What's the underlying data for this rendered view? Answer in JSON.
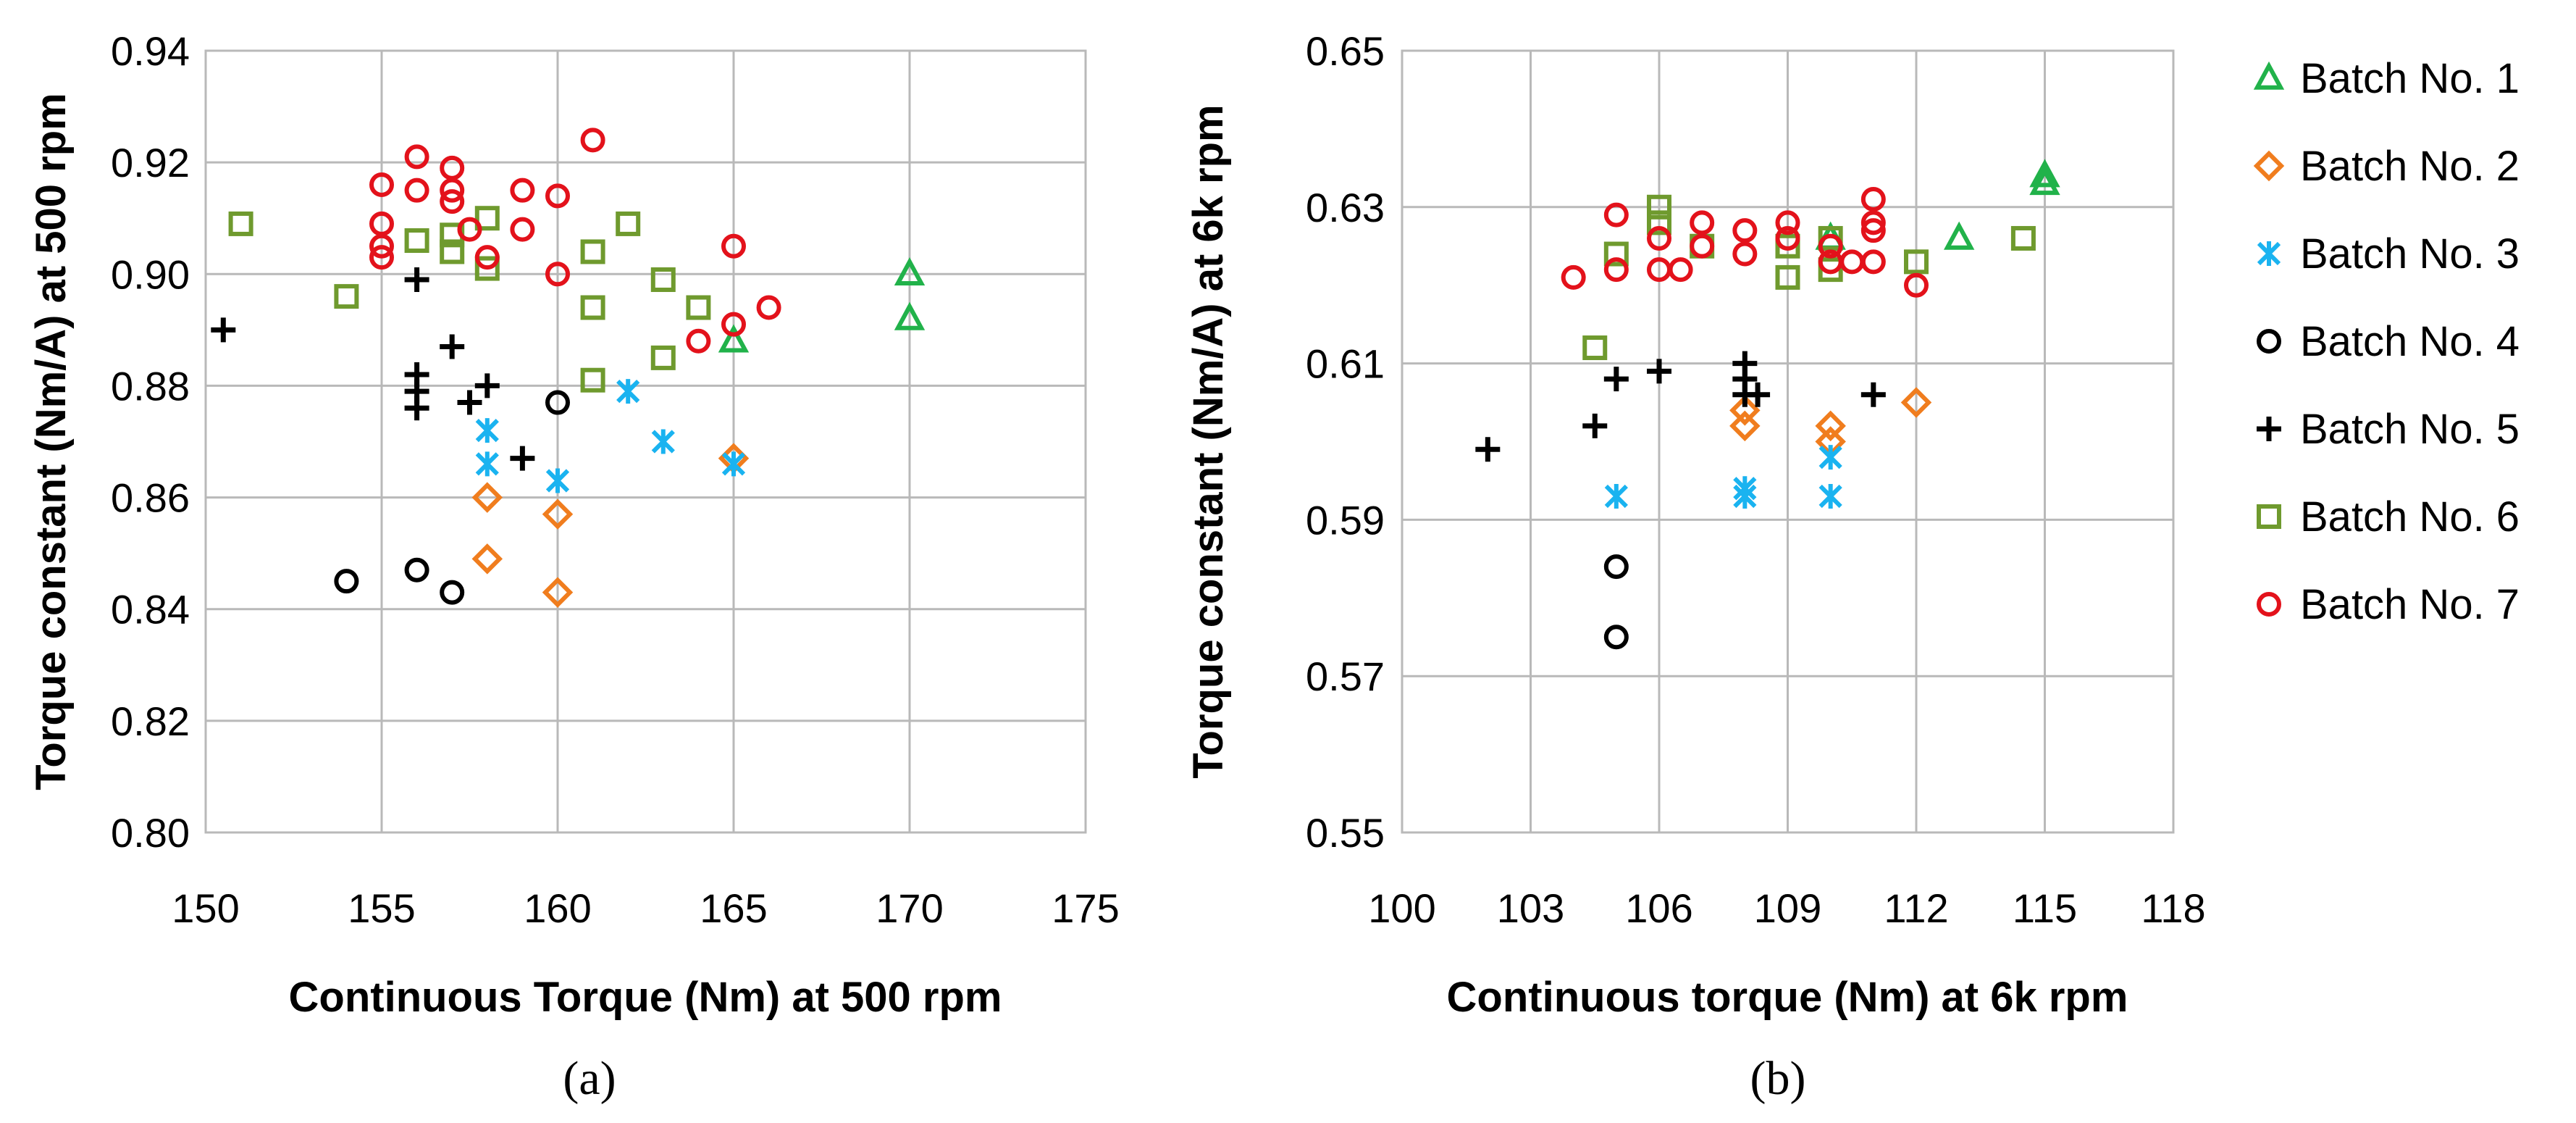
{
  "figure": {
    "label_a": "(a)",
    "label_b": "(b)"
  },
  "legend": [
    {
      "name": "Batch No. 1",
      "marker": "triangle",
      "color": "#21b24a"
    },
    {
      "name": "Batch No. 2",
      "marker": "diamond",
      "color": "#f07d1e"
    },
    {
      "name": "Batch No. 3",
      "marker": "star",
      "color": "#1ab3f0"
    },
    {
      "name": "Batch No. 4",
      "marker": "circle",
      "color": "#000000"
    },
    {
      "name": "Batch No. 5",
      "marker": "plus",
      "color": "#000000"
    },
    {
      "name": "Batch No. 6",
      "marker": "square",
      "color": "#6f9a2e"
    },
    {
      "name": "Batch No. 7",
      "marker": "circle",
      "color": "#e3121b"
    }
  ],
  "chart_data": [
    {
      "type": "scatter",
      "panel": "(a)",
      "title": "",
      "xlabel": "Continuous Torque (Nm) at 500 rpm",
      "ylabel": "Torque constant (Nm/A) at 500 rpm",
      "xlim": [
        150,
        175
      ],
      "ylim": [
        0.8,
        0.94
      ],
      "xticks": [
        "150",
        "155",
        "160",
        "165",
        "170",
        "175"
      ],
      "yticks": [
        "0.80",
        "0.82",
        "0.84",
        "0.86",
        "0.88",
        "0.90",
        "0.92",
        "0.94"
      ],
      "xstep": 5,
      "ystep": 0.02,
      "grid": true,
      "series": [
        {
          "name": "Batch No. 1",
          "points": [
            [
              170,
              0.9
            ],
            [
              170,
              0.892
            ],
            [
              165,
              0.888
            ]
          ]
        },
        {
          "name": "Batch No. 2",
          "points": [
            [
              158,
              0.86
            ],
            [
              158,
              0.849
            ],
            [
              160,
              0.857
            ],
            [
              160,
              0.843
            ],
            [
              165,
              0.867
            ]
          ]
        },
        {
          "name": "Batch No. 3",
          "points": [
            [
              158,
              0.872
            ],
            [
              158,
              0.866
            ],
            [
              160,
              0.863
            ],
            [
              162,
              0.879
            ],
            [
              163,
              0.87
            ],
            [
              165,
              0.866
            ]
          ]
        },
        {
          "name": "Batch No. 4",
          "points": [
            [
              154,
              0.845
            ],
            [
              156,
              0.847
            ],
            [
              157,
              0.843
            ],
            [
              160,
              0.877
            ]
          ]
        },
        {
          "name": "Batch No. 5",
          "points": [
            [
              150.5,
              0.89
            ],
            [
              156,
              0.899
            ],
            [
              156,
              0.882
            ],
            [
              156,
              0.879
            ],
            [
              156,
              0.876
            ],
            [
              157,
              0.887
            ],
            [
              157.5,
              0.877
            ],
            [
              158,
              0.88
            ],
            [
              159,
              0.867
            ]
          ]
        },
        {
          "name": "Batch No. 6",
          "points": [
            [
              151,
              0.909
            ],
            [
              154,
              0.896
            ],
            [
              156,
              0.906
            ],
            [
              157,
              0.907
            ],
            [
              157,
              0.904
            ],
            [
              158,
              0.91
            ],
            [
              158,
              0.901
            ],
            [
              161,
              0.904
            ],
            [
              161,
              0.894
            ],
            [
              161,
              0.881
            ],
            [
              162,
              0.909
            ],
            [
              163,
              0.899
            ],
            [
              163,
              0.885
            ],
            [
              164,
              0.894
            ]
          ]
        },
        {
          "name": "Batch No. 7",
          "points": [
            [
              155,
              0.916
            ],
            [
              155,
              0.909
            ],
            [
              155,
              0.905
            ],
            [
              155,
              0.903
            ],
            [
              156,
              0.921
            ],
            [
              156,
              0.915
            ],
            [
              157,
              0.919
            ],
            [
              157,
              0.915
            ],
            [
              157,
              0.913
            ],
            [
              157.5,
              0.908
            ],
            [
              158,
              0.903
            ],
            [
              159,
              0.915
            ],
            [
              159,
              0.908
            ],
            [
              160,
              0.914
            ],
            [
              160,
              0.9
            ],
            [
              161,
              0.924
            ],
            [
              164,
              0.888
            ],
            [
              165,
              0.905
            ],
            [
              165,
              0.891
            ],
            [
              166,
              0.894
            ]
          ]
        }
      ]
    },
    {
      "type": "scatter",
      "panel": "(b)",
      "title": "",
      "xlabel": "Continuous torque (Nm) at 6k rpm",
      "ylabel": "Torque constant (Nm/A) at 6k rpm",
      "xlim": [
        100,
        118
      ],
      "ylim": [
        0.55,
        0.65
      ],
      "xticks": [
        "100",
        "103",
        "106",
        "109",
        "112",
        "115",
        "118"
      ],
      "yticks": [
        "0.55",
        "0.57",
        "0.59",
        "0.61",
        "0.63",
        "0.65"
      ],
      "xstep": 3,
      "ystep": 0.02,
      "grid": true,
      "series": [
        {
          "name": "Batch No. 1",
          "points": [
            [
              115,
              0.634
            ],
            [
              115,
              0.633
            ],
            [
              113,
              0.626
            ],
            [
              110,
              0.626
            ]
          ]
        },
        {
          "name": "Batch No. 2",
          "points": [
            [
              108,
              0.604
            ],
            [
              108,
              0.602
            ],
            [
              110,
              0.602
            ],
            [
              110,
              0.6
            ],
            [
              112,
              0.605
            ]
          ]
        },
        {
          "name": "Batch No. 3",
          "points": [
            [
              105,
              0.593
            ],
            [
              108,
              0.594
            ],
            [
              108,
              0.593
            ],
            [
              110,
              0.598
            ],
            [
              110,
              0.593
            ]
          ]
        },
        {
          "name": "Batch No. 4",
          "points": [
            [
              105,
              0.584
            ],
            [
              105,
              0.575
            ]
          ]
        },
        {
          "name": "Batch No. 5",
          "points": [
            [
              102,
              0.599
            ],
            [
              104.5,
              0.602
            ],
            [
              105,
              0.608
            ],
            [
              106,
              0.609
            ],
            [
              108,
              0.61
            ],
            [
              108,
              0.608
            ],
            [
              108,
              0.606
            ],
            [
              108.3,
              0.606
            ],
            [
              111,
              0.606
            ]
          ]
        },
        {
          "name": "Batch No. 6",
          "points": [
            [
              104.5,
              0.612
            ],
            [
              105,
              0.624
            ],
            [
              106,
              0.63
            ],
            [
              106,
              0.628
            ],
            [
              107,
              0.625
            ],
            [
              109,
              0.625
            ],
            [
              109,
              0.621
            ],
            [
              110,
              0.626
            ],
            [
              110,
              0.622
            ],
            [
              112,
              0.623
            ],
            [
              114.5,
              0.626
            ]
          ]
        },
        {
          "name": "Batch No. 7",
          "points": [
            [
              104,
              0.621
            ],
            [
              105,
              0.629
            ],
            [
              105,
              0.622
            ],
            [
              106,
              0.626
            ],
            [
              106,
              0.622
            ],
            [
              106.5,
              0.622
            ],
            [
              107,
              0.628
            ],
            [
              107,
              0.625
            ],
            [
              108,
              0.627
            ],
            [
              108,
              0.624
            ],
            [
              109,
              0.628
            ],
            [
              109,
              0.626
            ],
            [
              110,
              0.625
            ],
            [
              110,
              0.623
            ],
            [
              110.5,
              0.623
            ],
            [
              111,
              0.631
            ],
            [
              111,
              0.628
            ],
            [
              111,
              0.627
            ],
            [
              111,
              0.623
            ],
            [
              112,
              0.62
            ]
          ]
        }
      ]
    }
  ]
}
